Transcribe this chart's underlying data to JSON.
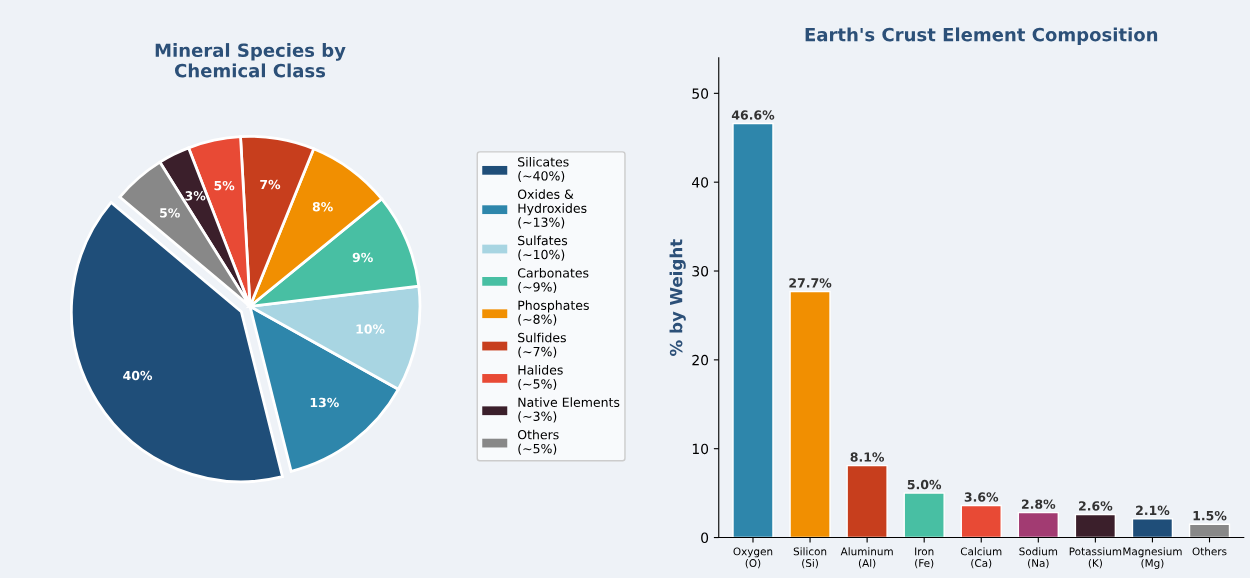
{
  "chart_data": [
    {
      "type": "pie",
      "title": "Mineral Species by\nChemical Class",
      "categories": [
        "Silicates\n(~40%)",
        "Oxides &\nHydroxides\n(~13%)",
        "Sulfates\n(~10%)",
        "Carbonates\n(~9%)",
        "Phosphates\n(~8%)",
        "Sulfides\n(~7%)",
        "Halides\n(~5%)",
        "Native Elements\n(~3%)",
        "Others\n(~5%)"
      ],
      "values": [
        40,
        13,
        10,
        9,
        8,
        7,
        5,
        3,
        5
      ],
      "value_labels": [
        "40%",
        "13%",
        "10%",
        "9%",
        "8%",
        "7%",
        "5%",
        "3%",
        "5%"
      ],
      "colors": [
        "#1f4e79",
        "#2e86ab",
        "#a8d5e2",
        "#48bfa3",
        "#f18f01",
        "#c73e1d",
        "#e84a35",
        "#3b1f2b",
        "#888888"
      ],
      "legend": "right"
    },
    {
      "type": "bar",
      "title": "Earth's Crust Element Composition",
      "ylabel": "% by Weight",
      "categories": [
        "Oxygen\n(O)",
        "Silicon\n(Si)",
        "Aluminum\n(Al)",
        "Iron\n(Fe)",
        "Calcium\n(Ca)",
        "Sodium\n(Na)",
        "Potassium\n(K)",
        "Magnesium\n(Mg)",
        "Others"
      ],
      "values": [
        46.6,
        27.7,
        8.1,
        5.0,
        3.6,
        2.8,
        2.6,
        2.1,
        1.5
      ],
      "value_labels": [
        "46.6%",
        "27.7%",
        "8.1%",
        "5.0%",
        "3.6%",
        "2.8%",
        "2.6%",
        "2.1%",
        "1.5%"
      ],
      "colors": [
        "#2e86ab",
        "#f18f01",
        "#c73e1d",
        "#48bfa3",
        "#e84a35",
        "#a23b72",
        "#3b1f2b",
        "#1f4e79",
        "#888888"
      ],
      "ylim": [
        0,
        54
      ],
      "yticks": [
        0,
        10,
        20,
        30,
        40,
        50
      ],
      "grid": false
    }
  ]
}
